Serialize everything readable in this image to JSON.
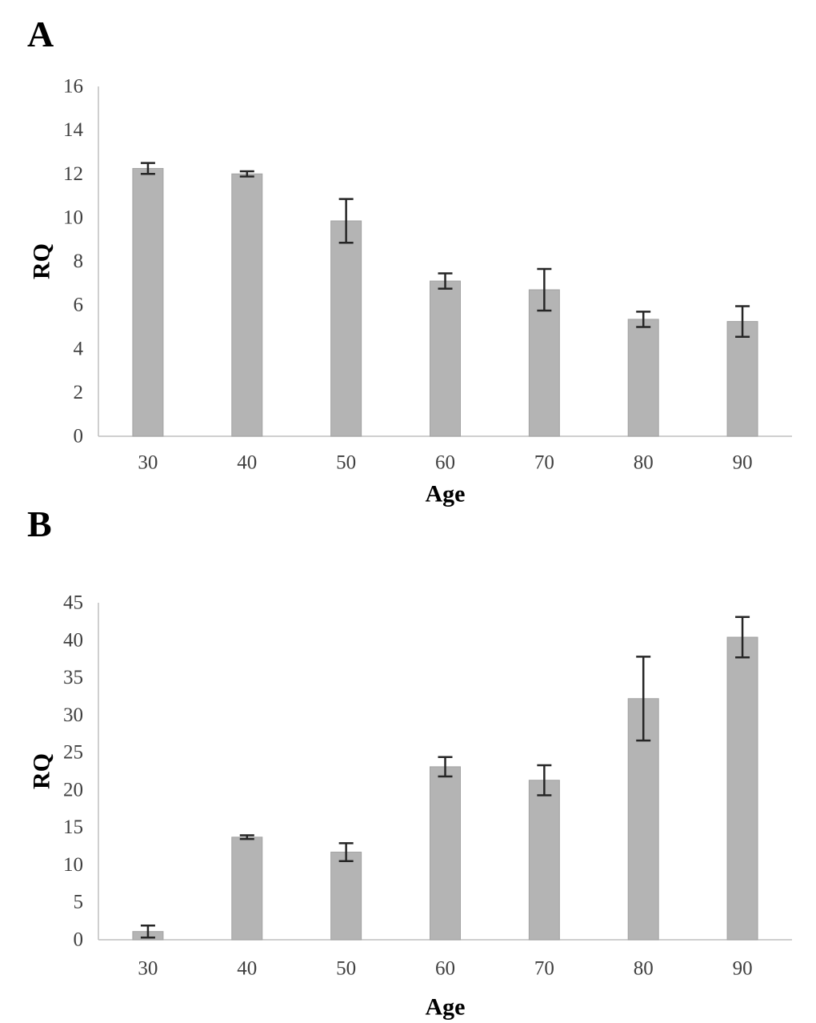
{
  "figure": {
    "background": "#ffffff",
    "panels": [
      {
        "label": "A"
      },
      {
        "label": "B"
      }
    ]
  },
  "chart_data": [
    {
      "type": "bar",
      "panel": "A",
      "title": "",
      "xlabel": "Age",
      "ylabel": "RQ",
      "categories": [
        "30",
        "40",
        "50",
        "60",
        "70",
        "80",
        "90"
      ],
      "values": [
        12.25,
        12.0,
        9.85,
        7.1,
        6.7,
        5.35,
        5.25
      ],
      "errors": [
        0.25,
        0.12,
        1.0,
        0.35,
        0.95,
        0.35,
        0.7
      ],
      "ylim": [
        0,
        16
      ],
      "ytick_step": 2,
      "grid": false,
      "legend": "none",
      "bar_color": "#b4b4b4",
      "bar_border": "#a2a2a2",
      "error_color": "#262626",
      "axis_color": "#bfbfbf",
      "tick_color": "#3f3f3f"
    },
    {
      "type": "bar",
      "panel": "B",
      "title": "",
      "xlabel": "Age",
      "ylabel": "RQ",
      "categories": [
        "30",
        "40",
        "50",
        "60",
        "70",
        "80",
        "90"
      ],
      "values": [
        1.1,
        13.7,
        11.7,
        23.1,
        21.3,
        32.2,
        40.4
      ],
      "errors": [
        0.8,
        0.25,
        1.2,
        1.3,
        2.0,
        5.6,
        2.7
      ],
      "ylim": [
        0,
        45
      ],
      "ytick_step": 5,
      "grid": false,
      "legend": "none",
      "bar_color": "#b4b4b4",
      "bar_border": "#a2a2a2",
      "error_color": "#262626",
      "axis_color": "#bfbfbf",
      "tick_color": "#3f3f3f"
    }
  ]
}
